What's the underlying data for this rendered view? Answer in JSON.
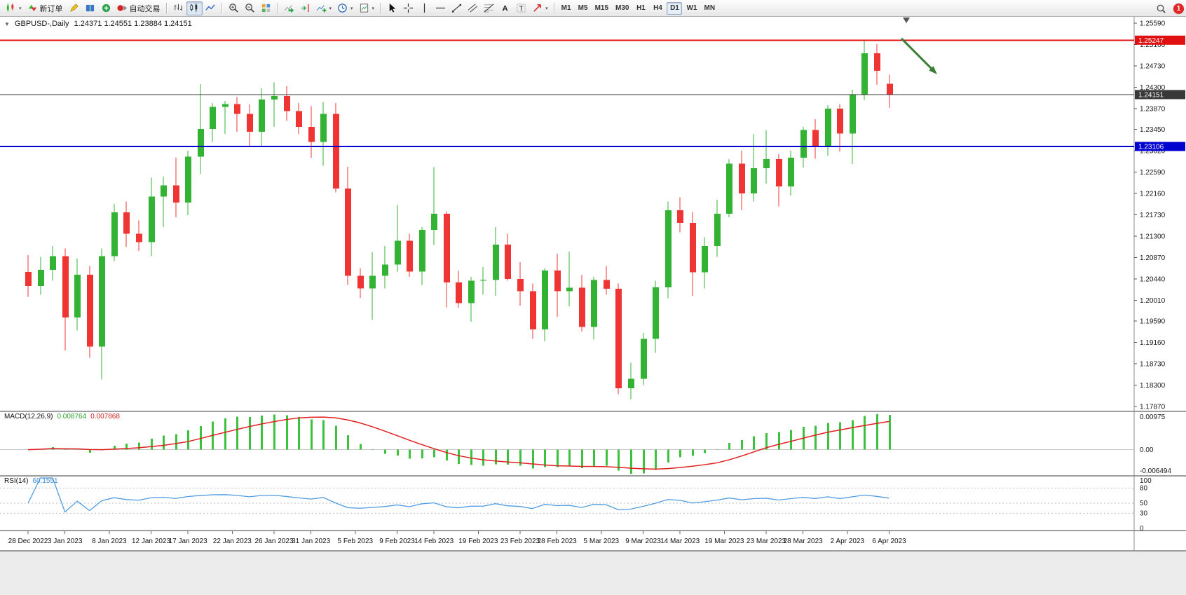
{
  "toolbar": {
    "groups": [
      {
        "items": [
          {
            "name": "new-chart",
            "icon": "candles",
            "dropdown": true
          },
          {
            "name": "new-order",
            "icon": "order",
            "label": "新订单"
          },
          {
            "name": "metaeditor",
            "icon": "editor"
          },
          {
            "name": "market-watch",
            "icon": "book"
          },
          {
            "name": "navigator",
            "icon": "nav"
          },
          {
            "name": "auto-trading",
            "icon": "autotrade",
            "label": "自动交易"
          }
        ]
      },
      {
        "items": [
          {
            "name": "chart-bars",
            "icon": "bars"
          },
          {
            "name": "chart-candles",
            "icon": "candles2",
            "active": true
          },
          {
            "name": "chart-line",
            "icon": "line"
          }
        ]
      },
      {
        "items": [
          {
            "name": "zoom-in",
            "icon": "zoomin"
          },
          {
            "name": "zoom-out",
            "icon": "zoomout"
          },
          {
            "name": "tile-windows",
            "icon": "tiles"
          }
        ]
      },
      {
        "items": [
          {
            "name": "auto-scroll",
            "icon": "autoscroll"
          },
          {
            "name": "chart-shift",
            "icon": "shift"
          },
          {
            "name": "indicators",
            "icon": "indicators",
            "dropdown": true
          },
          {
            "name": "periods",
            "icon": "clock",
            "dropdown": true
          },
          {
            "name": "templates",
            "icon": "template",
            "dropdown": true
          }
        ]
      },
      {
        "items": [
          {
            "name": "cursor",
            "icon": "cursor"
          },
          {
            "name": "crosshair",
            "icon": "crosshair"
          },
          {
            "name": "vertical-line",
            "icon": "vline"
          },
          {
            "name": "horizontal-line",
            "icon": "hline"
          },
          {
            "name": "trendline",
            "icon": "trend"
          },
          {
            "name": "equidistant-channel",
            "icon": "channel"
          },
          {
            "name": "fibonacci",
            "icon": "fibo"
          },
          {
            "name": "text",
            "icon": "textA"
          },
          {
            "name": "text-label",
            "icon": "textT"
          },
          {
            "name": "arrows",
            "icon": "arrow",
            "dropdown": true
          }
        ]
      }
    ],
    "timeframes": [
      "M1",
      "M5",
      "M15",
      "M30",
      "H1",
      "H4",
      "D1",
      "W1",
      "MN"
    ],
    "active_timeframe": "D1",
    "notification_count": "1"
  },
  "chart": {
    "title": "GBPUSD-,Daily",
    "ohlc": "1.24371 1.24551 1.23884 1.24151"
  },
  "indicators": {
    "macd": {
      "name": "MACD(12,26,9)",
      "value_main": "0.008764",
      "value_signal": "0.007868"
    },
    "rsi": {
      "name": "RSI(14)",
      "value": "60.1551"
    }
  },
  "chart_data": {
    "type": "candlestick",
    "symbol": "GBPUSD-",
    "period": "Daily",
    "style": {
      "up_color": "#33b333",
      "down_color": "#ef3434",
      "macd_histogram": "#3cc23c",
      "macd_signal": "#e02020",
      "rsi_line": "#4f9ce0"
    },
    "candles": [
      [
        1.2058,
        1.2092,
        1.2008,
        1.203
      ],
      [
        1.203,
        1.2088,
        1.2012,
        1.2062
      ],
      [
        1.2062,
        1.211,
        1.204,
        1.209
      ],
      [
        1.209,
        1.2105,
        1.19,
        1.1966
      ],
      [
        1.1966,
        1.2085,
        1.194,
        1.2052
      ],
      [
        1.2052,
        1.207,
        1.1885,
        1.1908
      ],
      [
        1.1908,
        1.2105,
        1.1841,
        1.209
      ],
      [
        1.209,
        1.2195,
        1.208,
        1.2178
      ],
      [
        1.2178,
        1.22,
        1.2108,
        1.2135
      ],
      [
        1.2135,
        1.2162,
        1.21,
        1.2118
      ],
      [
        1.2118,
        1.2248,
        1.209,
        1.221
      ],
      [
        1.221,
        1.225,
        1.2148,
        1.2232
      ],
      [
        1.2232,
        1.2288,
        1.2168,
        1.2198
      ],
      [
        1.2198,
        1.2302,
        1.2172,
        1.229
      ],
      [
        1.229,
        1.2436,
        1.2255,
        1.2346
      ],
      [
        1.2346,
        1.2398,
        1.232,
        1.239
      ],
      [
        1.239,
        1.2402,
        1.2336,
        1.2396
      ],
      [
        1.2396,
        1.241,
        1.234,
        1.2376
      ],
      [
        1.2376,
        1.2395,
        1.231,
        1.234
      ],
      [
        1.234,
        1.2428,
        1.2312,
        1.2405
      ],
      [
        1.2405,
        1.244,
        1.235,
        1.2412
      ],
      [
        1.2412,
        1.2432,
        1.2362,
        1.2382
      ],
      [
        1.2382,
        1.2398,
        1.2335,
        1.235
      ],
      [
        1.235,
        1.2392,
        1.2288,
        1.232
      ],
      [
        1.232,
        1.24,
        1.2272,
        1.2376
      ],
      [
        1.2376,
        1.2398,
        1.2218,
        1.2226
      ],
      [
        1.2226,
        1.227,
        1.2032,
        1.205
      ],
      [
        1.205,
        1.2065,
        1.2006,
        1.2025
      ],
      [
        1.2025,
        1.2098,
        1.1961,
        1.205
      ],
      [
        1.205,
        1.211,
        1.2025,
        1.2073
      ],
      [
        1.2073,
        1.2193,
        1.2058,
        1.2121
      ],
      [
        1.2121,
        1.2135,
        1.2048,
        1.2059
      ],
      [
        1.2059,
        1.2148,
        1.2032,
        1.2143
      ],
      [
        1.2143,
        1.2269,
        1.2112,
        1.2175
      ],
      [
        1.2175,
        1.218,
        1.1987,
        1.2037
      ],
      [
        1.2037,
        1.206,
        1.1986,
        1.1995
      ],
      [
        1.1995,
        1.2048,
        1.1958,
        1.204
      ],
      [
        1.204,
        1.2068,
        1.2012,
        1.2042
      ],
      [
        1.2042,
        1.2148,
        1.201,
        1.2113
      ],
      [
        1.2113,
        1.2135,
        1.204,
        1.2044
      ],
      [
        1.2044,
        1.2078,
        1.199,
        1.2019
      ],
      [
        1.2019,
        1.2035,
        1.1923,
        1.1942
      ],
      [
        1.1942,
        1.2065,
        1.1918,
        1.2061
      ],
      [
        1.2061,
        1.2095,
        1.1968,
        1.2019
      ],
      [
        1.2019,
        1.2099,
        1.1989,
        1.2026
      ],
      [
        1.2026,
        1.2052,
        1.1938,
        1.1947
      ],
      [
        1.1947,
        1.2048,
        1.1922,
        1.2042
      ],
      [
        1.2042,
        1.207,
        1.2012,
        1.2024
      ],
      [
        1.2024,
        1.2035,
        1.1812,
        1.1824
      ],
      [
        1.1824,
        1.1875,
        1.1802,
        1.1843
      ],
      [
        1.1843,
        1.1935,
        1.183,
        1.1923
      ],
      [
        1.1923,
        1.204,
        1.1895,
        1.2027
      ],
      [
        1.2027,
        1.22,
        1.2005,
        1.2182
      ],
      [
        1.2182,
        1.2208,
        1.2138,
        1.2157
      ],
      [
        1.2157,
        1.2178,
        1.201,
        1.2057
      ],
      [
        1.2057,
        1.2128,
        1.2025,
        1.211
      ],
      [
        1.211,
        1.2203,
        1.2088,
        1.2175
      ],
      [
        1.2175,
        1.2285,
        1.2168,
        1.2276
      ],
      [
        1.2276,
        1.2302,
        1.2182,
        1.2216
      ],
      [
        1.2216,
        1.2335,
        1.22,
        1.2267
      ],
      [
        1.2267,
        1.2343,
        1.2236,
        1.2285
      ],
      [
        1.2285,
        1.2296,
        1.219,
        1.223
      ],
      [
        1.223,
        1.2302,
        1.2212,
        1.2288
      ],
      [
        1.2288,
        1.235,
        1.2268,
        1.2344
      ],
      [
        1.2344,
        1.2366,
        1.2286,
        1.2312
      ],
      [
        1.2312,
        1.2394,
        1.2292,
        1.2387
      ],
      [
        1.2387,
        1.2396,
        1.23,
        1.2337
      ],
      [
        1.2337,
        1.2425,
        1.2275,
        1.2415
      ],
      [
        1.2415,
        1.2525,
        1.2404,
        1.2498
      ],
      [
        1.2498,
        1.2517,
        1.2435,
        1.2463
      ],
      [
        1.2437,
        1.2455,
        1.2388,
        1.2415
      ]
    ],
    "x_labels": [
      [
        "28 Dec 2022",
        0
      ],
      [
        "3 Jan 2023",
        3
      ],
      [
        "8 Jan 2023",
        6.6
      ],
      [
        "12 Jan 2023",
        10
      ],
      [
        "17 Jan 2023",
        13
      ],
      [
        "22 Jan 2023",
        16.6
      ],
      [
        "26 Jan 2023",
        20
      ],
      [
        "31 Jan 2023",
        23
      ],
      [
        "5 Feb 2023",
        26.6
      ],
      [
        "9 Feb 2023",
        30
      ],
      [
        "14 Feb 2023",
        33
      ],
      [
        "19 Feb 2023",
        36.6
      ],
      [
        "23 Feb 2023",
        40
      ],
      [
        "28 Feb 2023",
        43
      ],
      [
        "5 Mar 2023",
        46.6
      ],
      [
        "9 Mar 2023",
        50
      ],
      [
        "14 Mar 2023",
        53
      ],
      [
        "19 Mar 2023",
        56.6
      ],
      [
        "23 Mar 2023",
        60
      ],
      [
        "28 Mar 2023",
        63
      ],
      [
        "2 Apr 2023",
        66.6
      ],
      [
        "6 Apr 2023",
        70
      ]
    ],
    "price_axis": [
      "1.25590",
      "1.25160",
      "1.24730",
      "1.24300",
      "1.23870",
      "1.23450",
      "1.23020",
      "1.22590",
      "1.22160",
      "1.21730",
      "1.21300",
      "1.20870",
      "1.20440",
      "1.20010",
      "1.19590",
      "1.19160",
      "1.18730",
      "1.18300",
      "1.17870"
    ],
    "macd_axis": [
      "0.00975",
      "0.00",
      "-0.006494"
    ],
    "rsi_axis": [
      "100",
      "80",
      "50",
      "30",
      "0"
    ],
    "rsi_levels": [
      80,
      50,
      30
    ],
    "hlines": [
      {
        "name": "resistance-line",
        "price": 1.25247,
        "label": "1.25247",
        "color": "#e01010",
        "width": 2
      },
      {
        "name": "current-price-line",
        "price": 1.24151,
        "label": "1.24151",
        "color": "#383838",
        "width": 1
      },
      {
        "name": "support-line",
        "price": 1.23106,
        "label": "1.23106",
        "color": "#0000d0",
        "width": 2
      }
    ],
    "annotation": {
      "name": "trend-arrow",
      "color": "#3a7d34",
      "x1_bar": 71.0,
      "y1_price": 1.2528,
      "x2_bar": 73.9,
      "y2_price": 1.2456
    },
    "shift_marker_bar": 71.4
  }
}
